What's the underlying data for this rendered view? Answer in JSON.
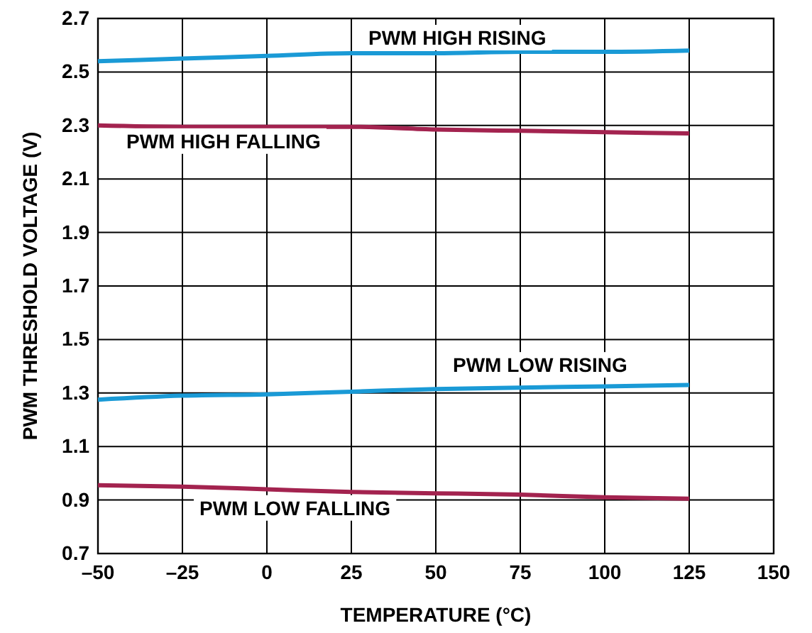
{
  "chart_data": {
    "type": "line",
    "xlabel": "TEMPERATURE (°C)",
    "ylabel": "PWM THRESHOLD VOLTAGE (V)",
    "x": [
      -50,
      -25,
      0,
      25,
      50,
      75,
      100,
      125
    ],
    "series": [
      {
        "name": "PWM HIGH RISING",
        "color": "#1a9ad6",
        "values": [
          2.54,
          2.55,
          2.56,
          2.57,
          2.57,
          2.575,
          2.575,
          2.58
        ]
      },
      {
        "name": "PWM HIGH FALLING",
        "color": "#a3234f",
        "values": [
          2.3,
          2.295,
          2.295,
          2.295,
          2.285,
          2.28,
          2.275,
          2.27
        ]
      },
      {
        "name": "PWM LOW RISING",
        "color": "#1a9ad6",
        "values": [
          1.275,
          1.29,
          1.295,
          1.305,
          1.315,
          1.32,
          1.325,
          1.33
        ]
      },
      {
        "name": "PWM LOW FALLING",
        "color": "#a3234f",
        "values": [
          0.955,
          0.95,
          0.94,
          0.93,
          0.925,
          0.92,
          0.91,
          0.905
        ]
      }
    ],
    "xlim": [
      -50,
      150
    ],
    "xticks": [
      {
        "value": -50,
        "label": "–50"
      },
      {
        "value": -25,
        "label": "–25"
      },
      0,
      25,
      50,
      75,
      100,
      125,
      150
    ],
    "ylim": [
      0.7,
      2.7
    ],
    "yticks": [
      0.7,
      0.9,
      1.1,
      1.3,
      1.5,
      1.7,
      1.9,
      2.1,
      2.3,
      2.5,
      2.7
    ],
    "grid": true,
    "marker": "none",
    "line_style": "solid"
  }
}
